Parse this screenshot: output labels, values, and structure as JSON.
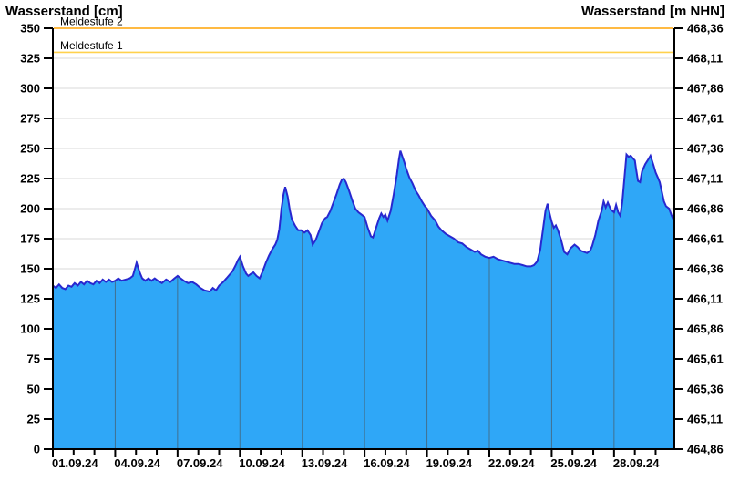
{
  "chart_data": {
    "type": "area",
    "series": [
      {
        "name": "Wasserstand",
        "unit": "cm",
        "points": [
          [
            0,
            136
          ],
          [
            0.15,
            134
          ],
          [
            0.3,
            137
          ],
          [
            0.45,
            134
          ],
          [
            0.6,
            133
          ],
          [
            0.75,
            136
          ],
          [
            0.9,
            135
          ],
          [
            1.05,
            138
          ],
          [
            1.2,
            136
          ],
          [
            1.35,
            139
          ],
          [
            1.5,
            137
          ],
          [
            1.65,
            140
          ],
          [
            1.8,
            138
          ],
          [
            1.95,
            137
          ],
          [
            2.1,
            140
          ],
          [
            2.25,
            138
          ],
          [
            2.4,
            141
          ],
          [
            2.55,
            139
          ],
          [
            2.7,
            141
          ],
          [
            2.85,
            139
          ],
          [
            3.0,
            140
          ],
          [
            3.15,
            142
          ],
          [
            3.3,
            140
          ],
          [
            3.5,
            141
          ],
          [
            3.7,
            142
          ],
          [
            3.85,
            144
          ],
          [
            3.95,
            150
          ],
          [
            4.03,
            155
          ],
          [
            4.1,
            151
          ],
          [
            4.2,
            146
          ],
          [
            4.3,
            142
          ],
          [
            4.45,
            140
          ],
          [
            4.6,
            142
          ],
          [
            4.75,
            140
          ],
          [
            4.9,
            142
          ],
          [
            5.05,
            140
          ],
          [
            5.25,
            138
          ],
          [
            5.45,
            141
          ],
          [
            5.65,
            139
          ],
          [
            5.85,
            142
          ],
          [
            6.0,
            144
          ],
          [
            6.15,
            142
          ],
          [
            6.3,
            140
          ],
          [
            6.5,
            138
          ],
          [
            6.7,
            139
          ],
          [
            6.9,
            137
          ],
          [
            7.1,
            134
          ],
          [
            7.3,
            132
          ],
          [
            7.55,
            131
          ],
          [
            7.7,
            134
          ],
          [
            7.85,
            132
          ],
          [
            8.0,
            136
          ],
          [
            8.2,
            139
          ],
          [
            8.35,
            142
          ],
          [
            8.5,
            145
          ],
          [
            8.65,
            148
          ],
          [
            8.8,
            153
          ],
          [
            8.9,
            157
          ],
          [
            9.0,
            160
          ],
          [
            9.15,
            152
          ],
          [
            9.3,
            146
          ],
          [
            9.4,
            144
          ],
          [
            9.55,
            146
          ],
          [
            9.65,
            147
          ],
          [
            9.8,
            144
          ],
          [
            9.95,
            142
          ],
          [
            10.1,
            148
          ],
          [
            10.25,
            155
          ],
          [
            10.4,
            161
          ],
          [
            10.55,
            166
          ],
          [
            10.7,
            170
          ],
          [
            10.8,
            174
          ],
          [
            10.9,
            183
          ],
          [
            11.0,
            200
          ],
          [
            11.1,
            212
          ],
          [
            11.18,
            218
          ],
          [
            11.3,
            210
          ],
          [
            11.4,
            199
          ],
          [
            11.5,
            191
          ],
          [
            11.65,
            186
          ],
          [
            11.8,
            182
          ],
          [
            11.95,
            182
          ],
          [
            12.1,
            180
          ],
          [
            12.25,
            182
          ],
          [
            12.4,
            178
          ],
          [
            12.5,
            170
          ],
          [
            12.65,
            174
          ],
          [
            12.8,
            181
          ],
          [
            12.95,
            188
          ],
          [
            13.1,
            192
          ],
          [
            13.2,
            193
          ],
          [
            13.35,
            198
          ],
          [
            13.5,
            205
          ],
          [
            13.65,
            212
          ],
          [
            13.8,
            220
          ],
          [
            13.9,
            224
          ],
          [
            14.0,
            225
          ],
          [
            14.1,
            222
          ],
          [
            14.25,
            215
          ],
          [
            14.4,
            207
          ],
          [
            14.55,
            200
          ],
          [
            14.7,
            197
          ],
          [
            14.85,
            195
          ],
          [
            15.0,
            193
          ],
          [
            15.15,
            184
          ],
          [
            15.3,
            177
          ],
          [
            15.4,
            176
          ],
          [
            15.55,
            184
          ],
          [
            15.7,
            192
          ],
          [
            15.8,
            196
          ],
          [
            15.9,
            193
          ],
          [
            16.0,
            195
          ],
          [
            16.1,
            190
          ],
          [
            16.25,
            198
          ],
          [
            16.4,
            212
          ],
          [
            16.55,
            228
          ],
          [
            16.65,
            241
          ],
          [
            16.72,
            248
          ],
          [
            16.8,
            244
          ],
          [
            16.9,
            239
          ],
          [
            17.0,
            233
          ],
          [
            17.15,
            226
          ],
          [
            17.3,
            221
          ],
          [
            17.45,
            215
          ],
          [
            17.6,
            211
          ],
          [
            17.75,
            206
          ],
          [
            17.9,
            202
          ],
          [
            18.0,
            200
          ],
          [
            18.2,
            194
          ],
          [
            18.4,
            190
          ],
          [
            18.55,
            185
          ],
          [
            18.7,
            182
          ],
          [
            18.9,
            179
          ],
          [
            19.1,
            177
          ],
          [
            19.3,
            175
          ],
          [
            19.5,
            172
          ],
          [
            19.7,
            171
          ],
          [
            19.9,
            168
          ],
          [
            20.1,
            166
          ],
          [
            20.3,
            164
          ],
          [
            20.45,
            165
          ],
          [
            20.6,
            162
          ],
          [
            20.8,
            160
          ],
          [
            21.0,
            159
          ],
          [
            21.2,
            160
          ],
          [
            21.4,
            158
          ],
          [
            21.6,
            157
          ],
          [
            21.8,
            156
          ],
          [
            22.0,
            155
          ],
          [
            22.2,
            154
          ],
          [
            22.4,
            154
          ],
          [
            22.6,
            153
          ],
          [
            22.8,
            152
          ],
          [
            23.0,
            152
          ],
          [
            23.15,
            153
          ],
          [
            23.3,
            156
          ],
          [
            23.45,
            166
          ],
          [
            23.6,
            185
          ],
          [
            23.7,
            198
          ],
          [
            23.8,
            204
          ],
          [
            23.9,
            196
          ],
          [
            24.0,
            189
          ],
          [
            24.1,
            184
          ],
          [
            24.2,
            186
          ],
          [
            24.3,
            182
          ],
          [
            24.45,
            174
          ],
          [
            24.6,
            164
          ],
          [
            24.75,
            162
          ],
          [
            24.9,
            167
          ],
          [
            25.1,
            170
          ],
          [
            25.25,
            168
          ],
          [
            25.4,
            165
          ],
          [
            25.55,
            164
          ],
          [
            25.7,
            163
          ],
          [
            25.85,
            165
          ],
          [
            25.95,
            169
          ],
          [
            26.1,
            178
          ],
          [
            26.25,
            190
          ],
          [
            26.4,
            198
          ],
          [
            26.5,
            206
          ],
          [
            26.6,
            201
          ],
          [
            26.7,
            205
          ],
          [
            26.85,
            199
          ],
          [
            27.0,
            197
          ],
          [
            27.1,
            203
          ],
          [
            27.2,
            197
          ],
          [
            27.3,
            194
          ],
          [
            27.4,
            206
          ],
          [
            27.5,
            226
          ],
          [
            27.6,
            245
          ],
          [
            27.7,
            243
          ],
          [
            27.8,
            244
          ],
          [
            27.9,
            242
          ],
          [
            28.0,
            240
          ],
          [
            28.05,
            234
          ],
          [
            28.15,
            223
          ],
          [
            28.25,
            222
          ],
          [
            28.35,
            231
          ],
          [
            28.5,
            237
          ],
          [
            28.65,
            241
          ],
          [
            28.75,
            244
          ],
          [
            28.9,
            236
          ],
          [
            29.0,
            230
          ],
          [
            29.1,
            226
          ],
          [
            29.2,
            222
          ],
          [
            29.3,
            214
          ],
          [
            29.4,
            206
          ],
          [
            29.5,
            202
          ],
          [
            29.65,
            200
          ],
          [
            29.75,
            195
          ],
          [
            29.85,
            191
          ],
          [
            29.9,
            189
          ]
        ]
      }
    ],
    "x_axis": {
      "start_label": "01.09.24",
      "span_days": 29.9,
      "major_tick_every_days": 3,
      "minor_tick_every_days": 1,
      "labels": [
        "01.09.24",
        "04.09.24",
        "07.09.24",
        "10.09.24",
        "13.09.24",
        "16.09.24",
        "19.09.24",
        "22.09.24",
        "25.09.24",
        "28.09.24"
      ]
    },
    "y_axis_left": {
      "title": "Wasserstand [cm]",
      "min": 0,
      "max": 350,
      "step": 25,
      "tick_labels": [
        "0",
        "25",
        "50",
        "75",
        "100",
        "125",
        "150",
        "175",
        "200",
        "225",
        "250",
        "275",
        "300",
        "325",
        "350"
      ]
    },
    "y_axis_right": {
      "title": "Wasserstand [m NHN]",
      "min": 464.86,
      "max": 468.36,
      "step": 0.25,
      "tick_labels": [
        "464,86",
        "465,11",
        "465,36",
        "465,61",
        "465,86",
        "466,11",
        "466,36",
        "466,61",
        "466,86",
        "467,11",
        "467,36",
        "467,61",
        "467,86",
        "468,11",
        "468,36"
      ]
    },
    "thresholds": [
      {
        "label": "Meldestufe 2",
        "value_cm": 350,
        "color": "#FFA405"
      },
      {
        "label": "Meldestufe 1",
        "value_cm": 330,
        "color": "#FFD14D"
      }
    ],
    "colors": {
      "area_fill": "#2FA7F7",
      "line": "#2828CF",
      "h_grid": "#D9D9D9",
      "v_grid_in_area": "#41708F",
      "axis": "#000000",
      "tick_text": "#000000"
    },
    "grid": {
      "horizontal": true,
      "vertical_inside_area": true,
      "legend": "none"
    }
  }
}
